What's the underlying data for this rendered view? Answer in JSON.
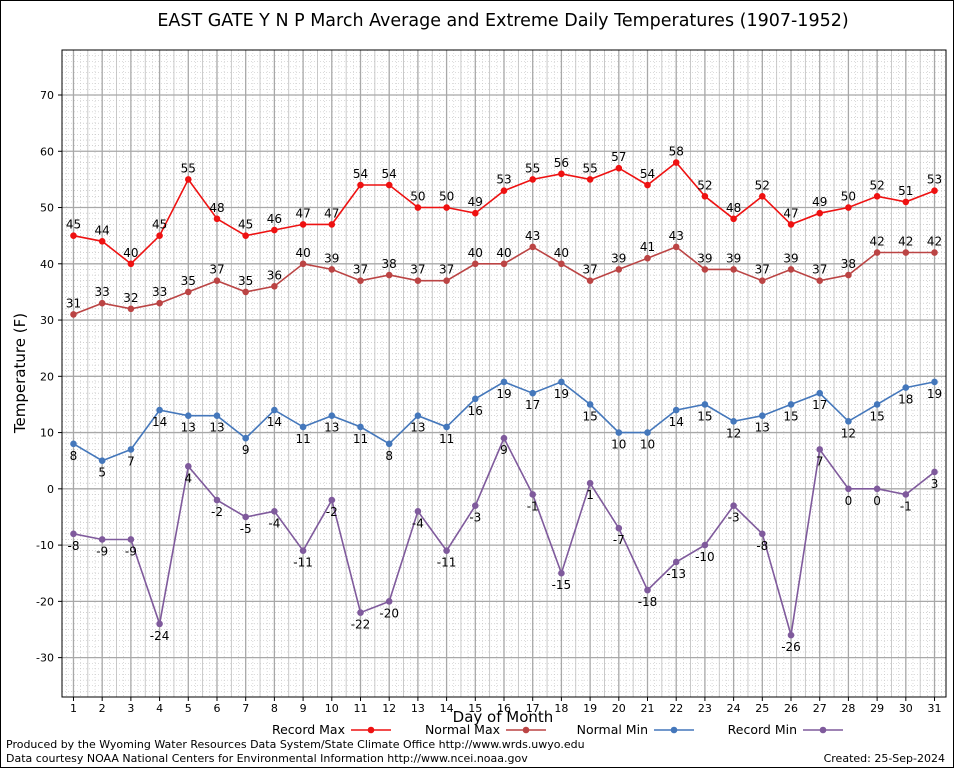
{
  "chart_data": {
    "type": "line",
    "title": "EAST GATE Y N P March Average and Extreme Daily Temperatures (1907-1952)",
    "xlabel": "Day of Month",
    "ylabel": "Temperature (F)",
    "xlim": [
      0.6,
      31.4
    ],
    "ylim": [
      -37,
      78
    ],
    "yticks": [
      -30,
      -20,
      -10,
      0,
      10,
      20,
      30,
      40,
      50,
      60,
      70
    ],
    "x": [
      1,
      2,
      3,
      4,
      5,
      6,
      7,
      8,
      9,
      10,
      11,
      12,
      13,
      14,
      15,
      16,
      17,
      18,
      19,
      20,
      21,
      22,
      23,
      24,
      25,
      26,
      27,
      28,
      29,
      30,
      31
    ],
    "grid": true,
    "legend_position": "bottom",
    "series": [
      {
        "name": "Record Max",
        "color": "#ee1111",
        "label_pos": "above",
        "values": [
          45,
          44,
          40,
          45,
          55,
          48,
          45,
          46,
          47,
          47,
          54,
          54,
          50,
          50,
          49,
          53,
          55,
          56,
          55,
          57,
          54,
          58,
          52,
          48,
          52,
          47,
          49,
          50,
          52,
          51,
          53
        ]
      },
      {
        "name": "Normal Max",
        "color": "#bb4444",
        "label_pos": "above",
        "values": [
          31,
          33,
          32,
          33,
          35,
          37,
          35,
          36,
          40,
          39,
          37,
          38,
          37,
          37,
          40,
          40,
          43,
          40,
          37,
          39,
          41,
          43,
          39,
          39,
          37,
          39,
          37,
          38,
          42,
          42,
          42
        ]
      },
      {
        "name": "Normal Min",
        "color": "#4477bb",
        "label_pos": "below",
        "values": [
          8,
          5,
          7,
          14,
          13,
          13,
          9,
          14,
          11,
          13,
          11,
          8,
          13,
          11,
          16,
          19,
          17,
          19,
          15,
          10,
          10,
          14,
          15,
          12,
          13,
          15,
          17,
          12,
          15,
          18,
          19
        ]
      },
      {
        "name": "Record Min",
        "color": "#7f5a9c",
        "label_pos": "below",
        "values": [
          -8,
          -9,
          -9,
          -24,
          4,
          -2,
          -5,
          -4,
          -11,
          -2,
          -22,
          -20,
          -4,
          -11,
          -3,
          9,
          -1,
          -15,
          1,
          -7,
          -18,
          -13,
          -10,
          -3,
          -8,
          -26,
          7,
          0,
          0,
          -1,
          3
        ]
      }
    ]
  },
  "footer": {
    "credit_line1": "Produced by the Wyoming Water Resources Data System/State Climate Office http://www.wrds.uwyo.edu",
    "credit_line2": "Data courtesy NOAA National Centers for Environmental Information http://www.ncei.noaa.gov",
    "created": "Created: 25-Sep-2024"
  }
}
